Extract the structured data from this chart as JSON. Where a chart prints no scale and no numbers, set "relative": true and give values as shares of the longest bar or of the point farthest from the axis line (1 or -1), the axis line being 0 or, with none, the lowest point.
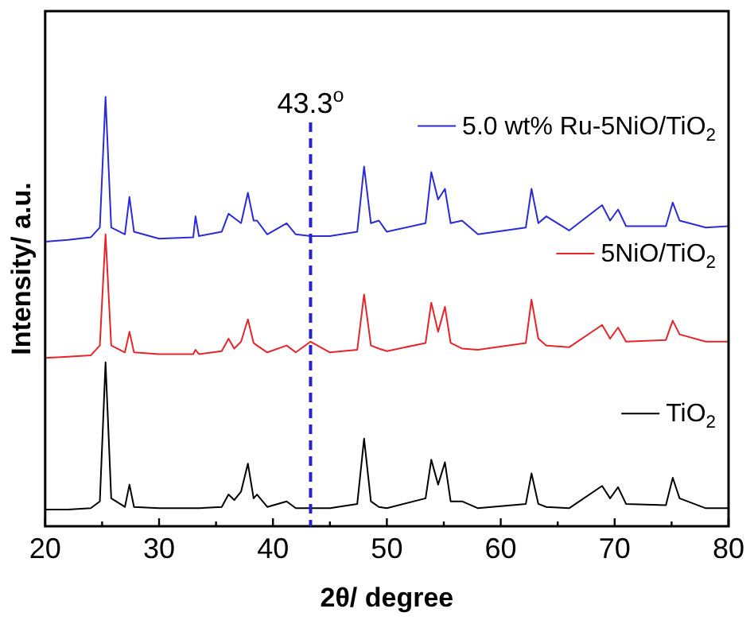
{
  "chart_data": {
    "type": "line",
    "xlabel": "2θ/ degree",
    "ylabel": "Intensity/ a.u.",
    "relative": true,
    "x": [
      20,
      22,
      24,
      24.8,
      25.3,
      25.8,
      27,
      27.4,
      27.8,
      30,
      33,
      33.2,
      33.5,
      35.5,
      36.1,
      36.6,
      37.2,
      37.8,
      38.3,
      38.6,
      39.5,
      41.2,
      42,
      43.3,
      45,
      47.4,
      48.0,
      48.6,
      49.3,
      50,
      53.4,
      53.9,
      54.5,
      55.1,
      55.6,
      56.6,
      58,
      62.2,
      62.7,
      63.3,
      64,
      66,
      68.9,
      69.6,
      70.3,
      71,
      74.5,
      75.1,
      75.7,
      78,
      80
    ],
    "xlim": [
      20,
      80
    ],
    "xticks": [
      20,
      {
        "value": 25,
        "label": null
      },
      30,
      {
        "value": 35,
        "label": null
      },
      40,
      {
        "value": 45,
        "label": null
      },
      50,
      {
        "value": 55,
        "label": null
      },
      60,
      {
        "value": 65,
        "label": null
      },
      70,
      {
        "value": 75,
        "label": null
      },
      80
    ],
    "series": [
      {
        "name": "5.0 wt% Ru-5NiO/TiO$_{2}$",
        "color": "#2a2ad8",
        "values": [
          0.663,
          0.667,
          0.673,
          0.696,
          1,
          0.696,
          0.68,
          0.767,
          0.686,
          0.67,
          0.673,
          0.722,
          0.676,
          0.686,
          0.728,
          0.718,
          0.706,
          0.777,
          0.712,
          0.712,
          0.68,
          0.706,
          0.68,
          0.676,
          0.676,
          0.686,
          0.838,
          0.706,
          0.712,
          0.686,
          0.706,
          0.825,
          0.761,
          0.786,
          0.706,
          0.712,
          0.68,
          0.696,
          0.786,
          0.706,
          0.722,
          0.689,
          0.748,
          0.712,
          0.738,
          0.699,
          0.699,
          0.754,
          0.712,
          0.696,
          0.699
        ]
      },
      {
        "name": "5NiO/TiO$_{2}$",
        "color": "#e8242a",
        "values": [
          0.392,
          0.395,
          0.398,
          0.421,
          0.68,
          0.421,
          0.405,
          0.453,
          0.405,
          0.401,
          0.401,
          0.411,
          0.401,
          0.408,
          0.437,
          0.414,
          0.43,
          0.482,
          0.427,
          0.421,
          0.405,
          0.421,
          0.405,
          0.43,
          0.405,
          0.411,
          0.54,
          0.421,
          0.414,
          0.408,
          0.427,
          0.521,
          0.453,
          0.511,
          0.427,
          0.414,
          0.411,
          0.427,
          0.528,
          0.437,
          0.421,
          0.417,
          0.469,
          0.437,
          0.463,
          0.43,
          0.434,
          0.479,
          0.447,
          0.43,
          0.43
        ]
      },
      {
        "name": "TiO$_{2}$",
        "color": "#000000",
        "values": [
          0.039,
          0.039,
          0.042,
          0.058,
          0.382,
          0.065,
          0.045,
          0.097,
          0.045,
          0.042,
          0.042,
          0.042,
          0.042,
          0.045,
          0.074,
          0.061,
          0.081,
          0.146,
          0.065,
          0.074,
          0.045,
          0.058,
          0.042,
          0.042,
          0.042,
          0.052,
          0.204,
          0.058,
          0.045,
          0.042,
          0.065,
          0.155,
          0.097,
          0.149,
          0.058,
          0.058,
          0.042,
          0.052,
          0.123,
          0.052,
          0.045,
          0.042,
          0.094,
          0.065,
          0.091,
          0.052,
          0.049,
          0.113,
          0.065,
          0.042,
          0.042
        ]
      }
    ],
    "ref_lines": [
      {
        "axis": "x",
        "value": 43.3,
        "label": "43.3$^{o}$",
        "color": "#2323c8",
        "line_style": "dashed"
      }
    ],
    "legend": "right",
    "grid": false
  }
}
